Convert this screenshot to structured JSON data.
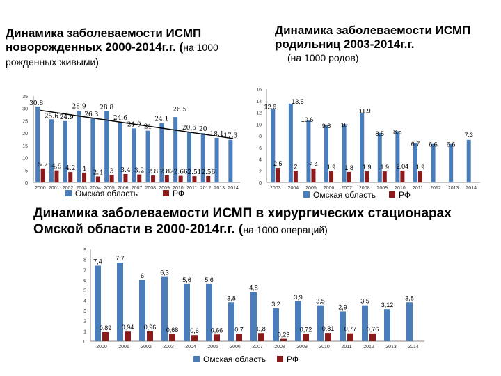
{
  "titles": {
    "chart1_main": "Динамика заболеваемости ИСМП новорожденных 2000-2014г.г. (",
    "chart1_sub": "на 1000 рожденных живыми)",
    "chart2_main": "Динамика заболеваемости ИСМП родильниц 2003-2014г.г.",
    "chart2_sub": "(на 1000 родов)",
    "chart3_main": "Динамика заболеваемости ИСМП в хирургических стационарах Омской области в 2000-2014г.г. (",
    "chart3_sub": "на 1000 операций)",
    "chart3_close": ""
  },
  "colors": {
    "omsk": "#4a7ebb",
    "rf": "#8b1a1a",
    "trend": "#000000",
    "axis": "#888888"
  },
  "chart_data": [
    {
      "type": "bar",
      "title": "Динамика заболеваемости ИСМП новорожденных 2000-2014г.г. (на 1000 рожденных живыми)",
      "categories": [
        "2000",
        "2001",
        "2002",
        "2003",
        "2004",
        "2005",
        "2006",
        "2007",
        "2008",
        "2009",
        "2010",
        "2011",
        "2012",
        "2013",
        "2014"
      ],
      "series": [
        {
          "name": "Омская область",
          "values": [
            30.8,
            25.6,
            24.9,
            28.9,
            26.3,
            28.8,
            24.6,
            21.9,
            21,
            24.1,
            26.5,
            20.6,
            20,
            18.1,
            17.3
          ]
        },
        {
          "name": "РФ",
          "values": [
            5.7,
            4.9,
            4.2,
            4,
            2.4,
            3,
            3.4,
            3.2,
            2.8,
            2.82,
            2.66,
            2.51,
            2.56,
            null,
            null
          ]
        }
      ],
      "labels_omsk": [
        "30.8",
        "25.6",
        "24.9",
        "28.9",
        "26.3",
        "28.8",
        "24.6",
        "21.9",
        "21",
        "24.1",
        "26.5",
        "20.6",
        "20",
        "18.1",
        "17.3"
      ],
      "labels_rf": [
        "5.7",
        "4.9",
        "4.2",
        "4",
        "2.4",
        "3",
        "3.4",
        "3.2",
        "2.8",
        "2.82",
        "2.66",
        "2.51",
        "2.56"
      ],
      "yticks": [
        "0",
        "5",
        "10",
        "15",
        "20",
        "25",
        "30",
        "35"
      ],
      "ylim": [
        0,
        35
      ],
      "trend": [
        29.2,
        17.8
      ],
      "legend": [
        "Омская область",
        "РФ"
      ]
    },
    {
      "type": "bar",
      "title": "Динамика заболеваемости ИСМП родильниц 2003-2014г.г. (на 1000 родов)",
      "categories": [
        "2003",
        "2004",
        "2005",
        "2006",
        "2007",
        "2008",
        "2009",
        "2010",
        "2011",
        "2012",
        "2013",
        "2014"
      ],
      "series": [
        {
          "name": "Омская область",
          "values": [
            12.6,
            13.5,
            10.6,
            9.8,
            10,
            11.9,
            8.5,
            8.8,
            6.7,
            6.6,
            6.6,
            7.3
          ]
        },
        {
          "name": "РФ",
          "values": [
            2.5,
            2,
            2.4,
            1.9,
            1.8,
            1.9,
            1.9,
            2.04,
            1.9,
            null,
            null,
            null
          ]
        }
      ],
      "labels_omsk": [
        "12.6",
        "13.5",
        "10.6",
        "9.8",
        "10",
        "11.9",
        "8.5",
        "8.8",
        "6.7",
        "6.6",
        "6.6",
        "7.3"
      ],
      "labels_rf": [
        "2.5",
        "2",
        "2.4",
        "1.9",
        "1.8",
        "1.9",
        "1.9",
        "2.04",
        "1.9"
      ],
      "yticks": [
        "0",
        "2",
        "4",
        "6",
        "8",
        "10",
        "12",
        "14",
        "16"
      ],
      "ylim": [
        0,
        16
      ],
      "legend": [
        "Омская область",
        "РФ"
      ]
    },
    {
      "type": "bar",
      "title": "Динамика заболеваемости ИСМП в хирургических стационарах Омской области в 2000-2014г.г. (на 1000 операций)",
      "categories": [
        "2000",
        "2001",
        "2002",
        "2003",
        "2004",
        "2005",
        "2006",
        "2007",
        "2008",
        "2009",
        "2010",
        "2011",
        "2012",
        "2013",
        "2014"
      ],
      "series": [
        {
          "name": "Омская область",
          "values": [
            7.4,
            7.7,
            6,
            6.3,
            5.6,
            5.6,
            3.8,
            4.8,
            3.2,
            3.9,
            3.5,
            2.9,
            3.5,
            3.12,
            3.8
          ]
        },
        {
          "name": "РФ",
          "values": [
            0.89,
            0.94,
            0.96,
            0.68,
            0.6,
            0.66,
            0.7,
            0.8,
            0.23,
            0.72,
            0.81,
            0.77,
            0.76,
            null,
            null
          ]
        }
      ],
      "labels_omsk": [
        "7,4",
        "7,7",
        "6",
        "6,3",
        "5,6",
        "5,6",
        "3,8",
        "4,8",
        "3,2",
        "3,9",
        "3,5",
        "2,9",
        "3,5",
        "3,12",
        "3,8"
      ],
      "labels_rf": [
        "0,89",
        "0,94",
        "0,96",
        "0,68",
        "0,6",
        "0,66",
        "0,7",
        "0,8",
        "0,23",
        "0,72",
        "0,81",
        "0,77",
        "0,76"
      ],
      "yticks": [
        "0",
        "1",
        "2",
        "3",
        "4",
        "5",
        "6",
        "7",
        "8",
        "9"
      ],
      "ylim": [
        0,
        9
      ],
      "legend": [
        "Омская область",
        "РФ"
      ]
    }
  ]
}
